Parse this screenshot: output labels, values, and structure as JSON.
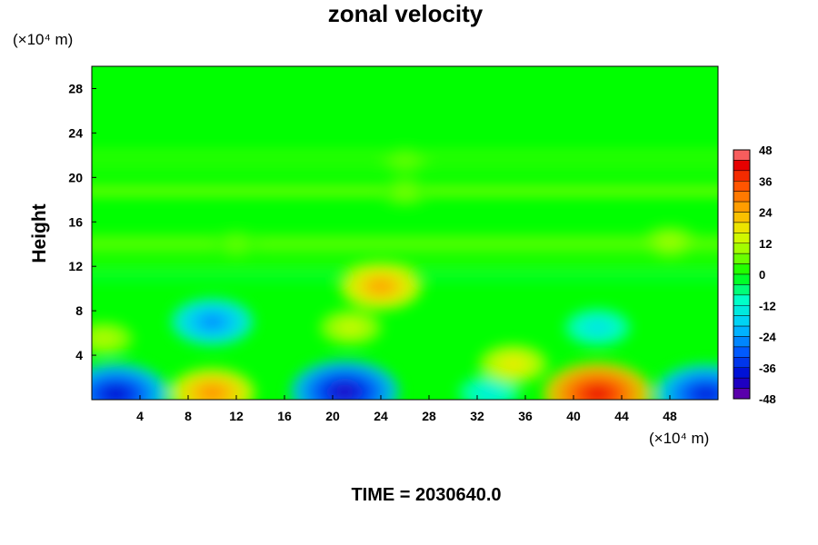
{
  "chart_data": {
    "type": "heatmap",
    "title": "zonal velocity",
    "xlabel": "",
    "ylabel": "Height",
    "x_unit": "(×10⁴ m)",
    "y_unit": "(×10⁴ m)",
    "xlim": [
      0,
      52
    ],
    "ylim": [
      0,
      30
    ],
    "x_ticks": [
      "4",
      "8",
      "12",
      "16",
      "20",
      "24",
      "28",
      "32",
      "36",
      "40",
      "44",
      "48"
    ],
    "y_ticks": [
      "4",
      "8",
      "12",
      "16",
      "20",
      "24",
      "28"
    ],
    "colorbar": {
      "min": -48,
      "max": 48,
      "step": 4,
      "ticks": [
        "48",
        "36",
        "24",
        "12",
        "0",
        "-12",
        "-24",
        "-36",
        "-48"
      ]
    },
    "grid": false,
    "background_color": "#00ff00",
    "features": [
      {
        "x": 2,
        "y": 0.5,
        "value": -40
      },
      {
        "x": 10,
        "y": 0.6,
        "value": 28
      },
      {
        "x": 21,
        "y": 0.7,
        "value": -42
      },
      {
        "x": 33,
        "y": 0.6,
        "value": -14
      },
      {
        "x": 35,
        "y": 3.2,
        "value": 18
      },
      {
        "x": 42,
        "y": 0.5,
        "value": 42
      },
      {
        "x": 51,
        "y": 0.5,
        "value": -38
      },
      {
        "x": 1,
        "y": 5.5,
        "value": 12
      },
      {
        "x": 10,
        "y": 7,
        "value": -26
      },
      {
        "x": 21.5,
        "y": 6.5,
        "value": 14
      },
      {
        "x": 24,
        "y": 10.2,
        "value": 26
      },
      {
        "x": 42,
        "y": 6.5,
        "value": -16
      },
      {
        "x": 12,
        "y": 14,
        "value": 6
      },
      {
        "x": 48,
        "y": 14.2,
        "value": 10
      },
      {
        "x": 26,
        "y": 18.7,
        "value": 7
      },
      {
        "x": 26,
        "y": 21.5,
        "value": 6
      }
    ]
  },
  "footer": {
    "time_label": "TIME = 2030640.0"
  }
}
